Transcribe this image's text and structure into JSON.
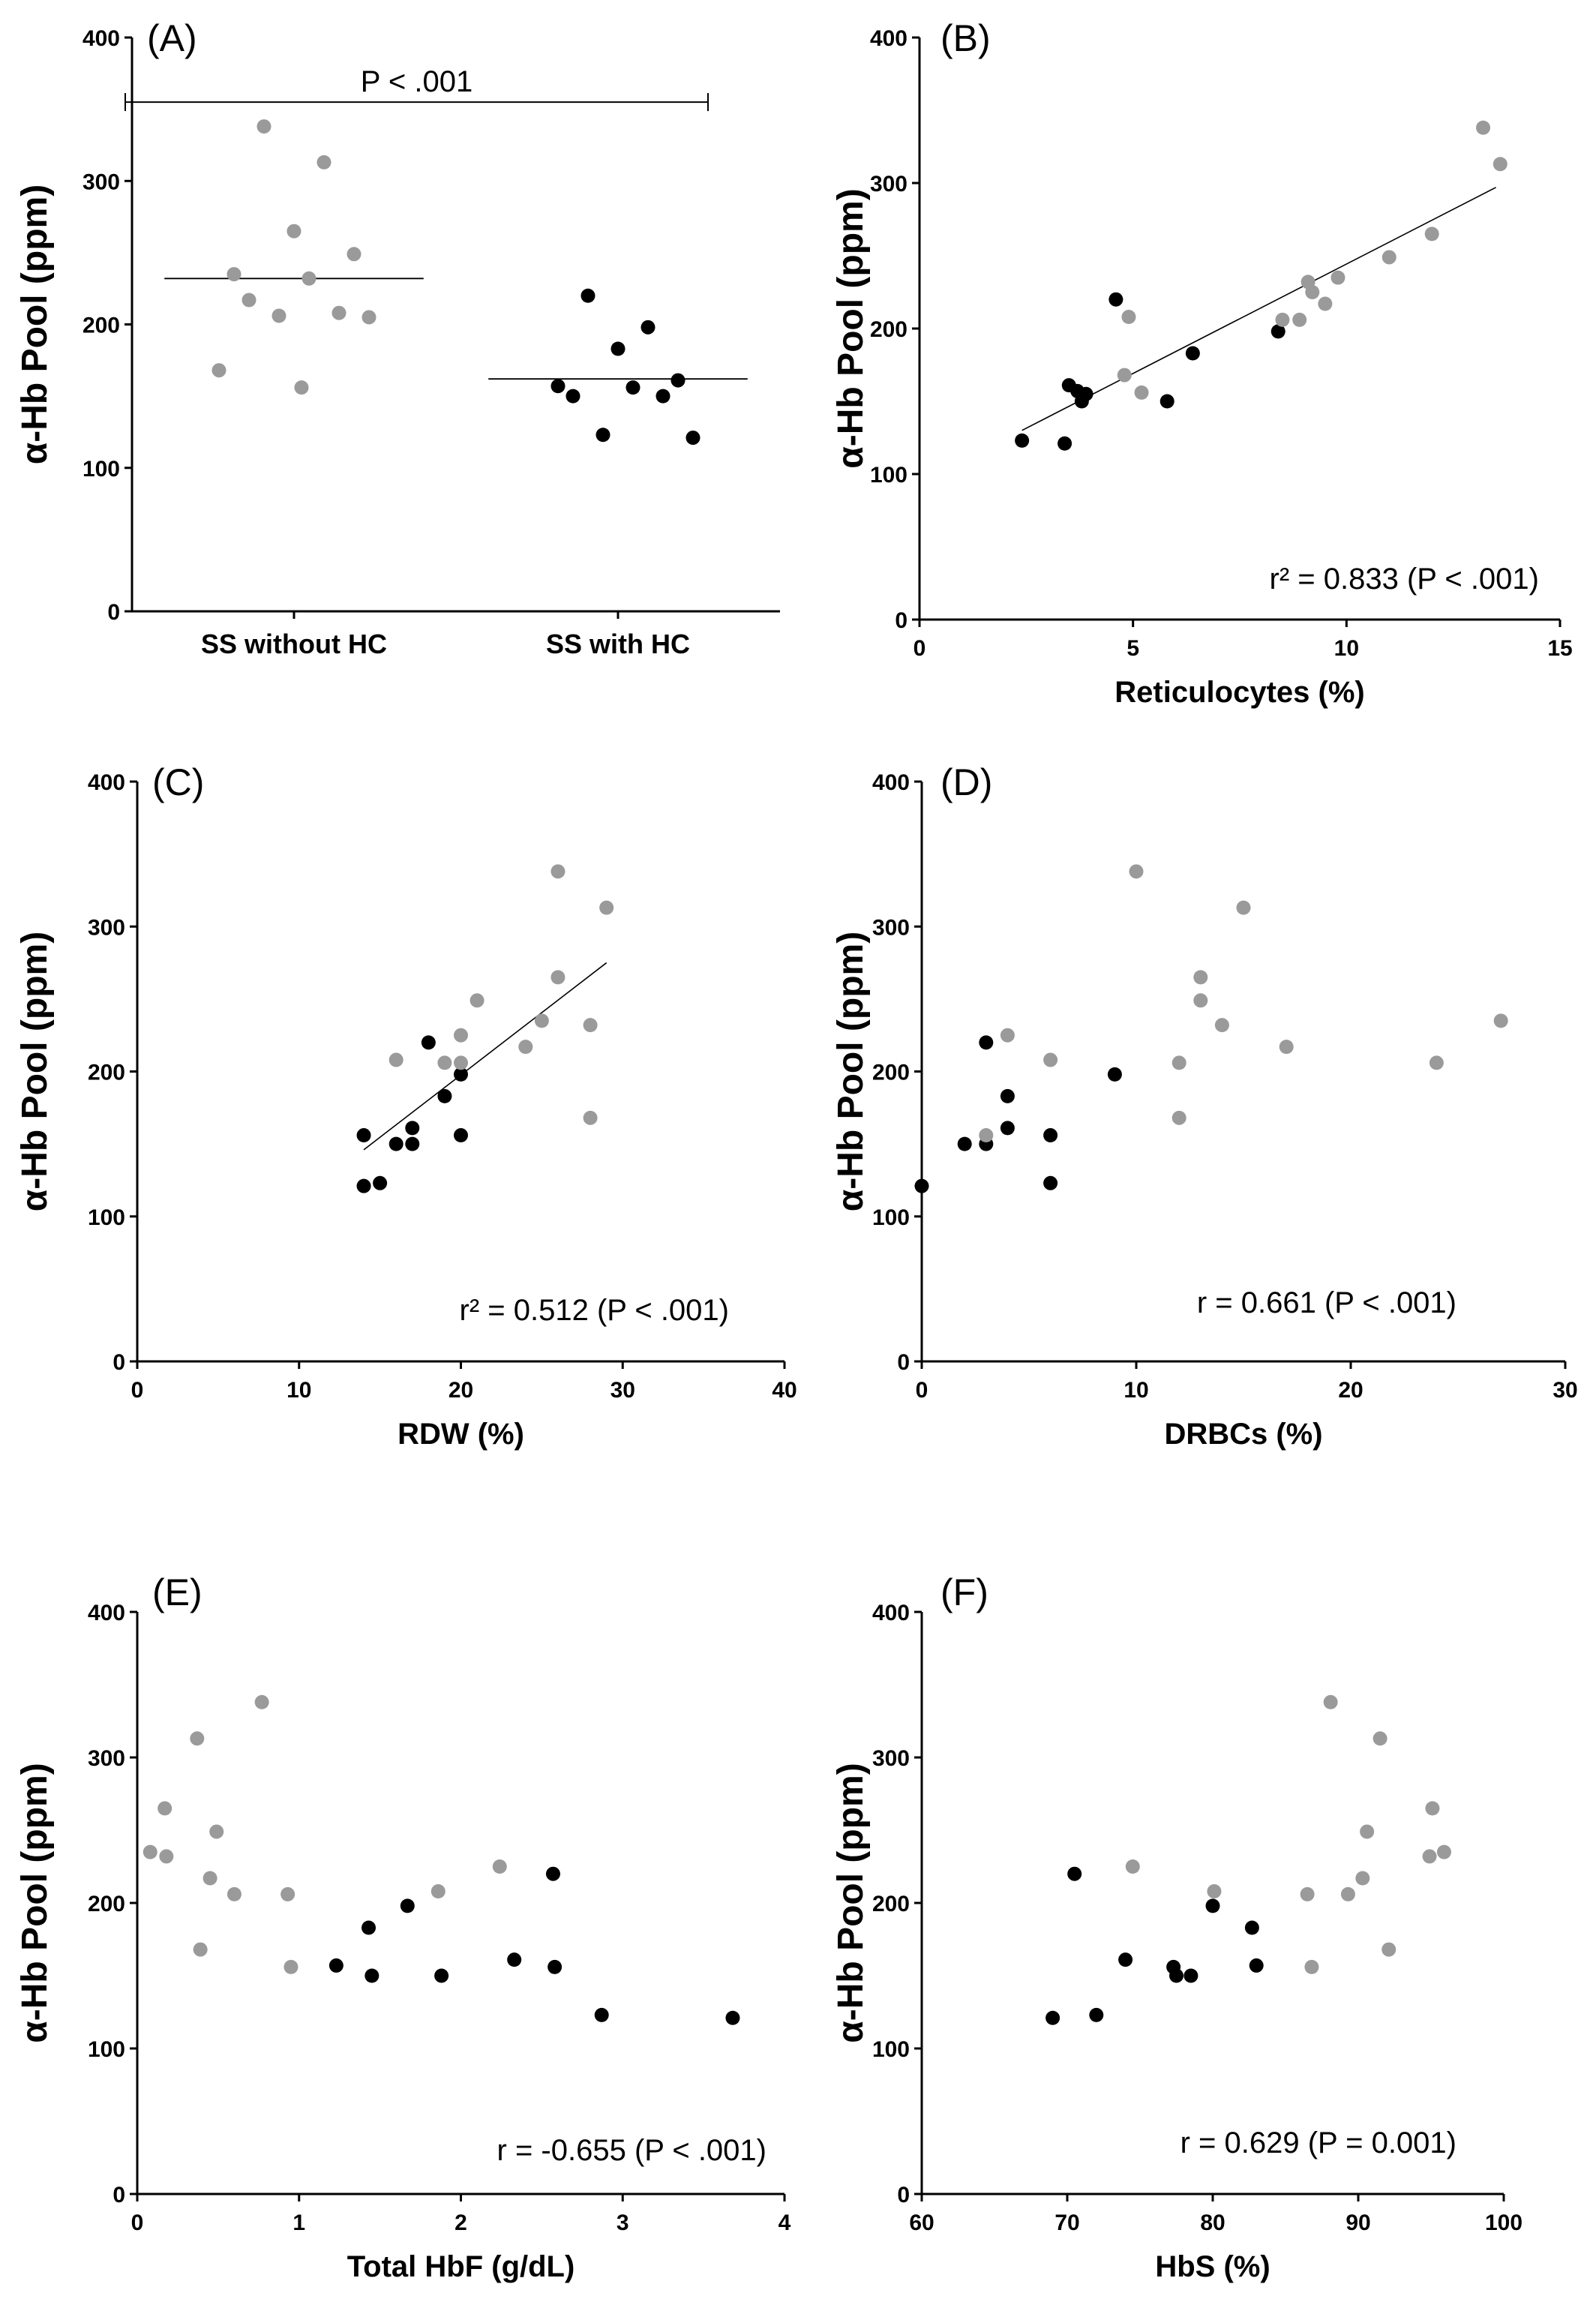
{
  "colors": {
    "with_hc": "#000000",
    "without_hc": "#9a9a9a",
    "axis": "#000000",
    "fit_line": "#000000"
  },
  "chart_data": [
    {
      "id": "A",
      "type": "scatter",
      "panel_label": "(A)",
      "ylabel": "α-Hb Pool (ppm)",
      "xlabel": "",
      "ylim": [
        0,
        400
      ],
      "yticks": [
        0,
        100,
        200,
        300,
        400
      ],
      "categories": [
        "SS without HC",
        "SS with HC"
      ],
      "annotation": "P < .001",
      "series": [
        {
          "group": "without_hc",
          "category": "SS without HC",
          "values": [
            338,
            313,
            265,
            249,
            235,
            232,
            217,
            208,
            206,
            205,
            168,
            156
          ],
          "mean": 232
        },
        {
          "group": "with_hc",
          "category": "SS with HC",
          "values": [
            220,
            198,
            183,
            161,
            157,
            156,
            150,
            150,
            123,
            121
          ],
          "mean": 162
        }
      ]
    },
    {
      "id": "B",
      "type": "scatter",
      "panel_label": "(B)",
      "ylabel": "α-Hb Pool (ppm)",
      "xlabel": "Reticulocytes (%)",
      "xlim": [
        0,
        15
      ],
      "xticks": [
        0,
        5,
        10,
        15
      ],
      "ylim": [
        0,
        400
      ],
      "yticks": [
        0,
        100,
        200,
        300,
        400
      ],
      "stat_text": "r² = 0.833 (P < .001)",
      "fit": {
        "x": [
          2.4,
          13.5
        ],
        "y": [
          130,
          297
        ]
      },
      "series": [
        {
          "group": "with_hc",
          "points": [
            [
              2.4,
              123
            ],
            [
              3.4,
              121
            ],
            [
              3.5,
              161
            ],
            [
              3.7,
              157
            ],
            [
              3.8,
              150
            ],
            [
              3.9,
              155
            ],
            [
              4.6,
              220
            ],
            [
              5.8,
              150
            ],
            [
              6.4,
              183
            ],
            [
              8.4,
              198
            ]
          ]
        },
        {
          "group": "without_hc",
          "points": [
            [
              4.8,
              168
            ],
            [
              4.9,
              208
            ],
            [
              5.2,
              156
            ],
            [
              8.5,
              206
            ],
            [
              8.9,
              206
            ],
            [
              9.1,
              232
            ],
            [
              9.2,
              225
            ],
            [
              9.5,
              217
            ],
            [
              9.8,
              235
            ],
            [
              11.0,
              249
            ],
            [
              12.0,
              265
            ],
            [
              13.2,
              338
            ],
            [
              13.6,
              313
            ]
          ]
        }
      ]
    },
    {
      "id": "C",
      "type": "scatter",
      "panel_label": "(C)",
      "ylabel": "α-Hb Pool (ppm)",
      "xlabel": "RDW (%)",
      "xlim": [
        0,
        40
      ],
      "xticks": [
        0,
        10,
        20,
        30,
        40
      ],
      "ylim": [
        0,
        400
      ],
      "yticks": [
        0,
        100,
        200,
        300,
        400
      ],
      "stat_text": "r² = 0.512 (P < .001)",
      "fit": {
        "x": [
          14,
          29
        ],
        "y": [
          146,
          275
        ]
      },
      "series": [
        {
          "group": "with_hc",
          "points": [
            [
              14,
              156
            ],
            [
              14,
              121
            ],
            [
              15,
              123
            ],
            [
              16,
              150
            ],
            [
              17,
              161
            ],
            [
              17,
              150
            ],
            [
              18,
              220
            ],
            [
              19,
              183
            ],
            [
              20,
              198
            ],
            [
              20,
              156
            ]
          ]
        },
        {
          "group": "without_hc",
          "points": [
            [
              16,
              208
            ],
            [
              19,
              206
            ],
            [
              20,
              225
            ],
            [
              20,
              206
            ],
            [
              21,
              249
            ],
            [
              24,
              217
            ],
            [
              25,
              235
            ],
            [
              26,
              338
            ],
            [
              26,
              265
            ],
            [
              28,
              232
            ],
            [
              28,
              168
            ],
            [
              29,
              313
            ]
          ]
        }
      ]
    },
    {
      "id": "D",
      "type": "scatter",
      "panel_label": "(D)",
      "ylabel": "α-Hb Pool (ppm)",
      "xlabel": "DRBCs (%)",
      "xlim": [
        0,
        30
      ],
      "xticks": [
        0,
        10,
        20,
        30
      ],
      "ylim": [
        0,
        400
      ],
      "yticks": [
        0,
        100,
        200,
        300,
        400
      ],
      "stat_text": "r = 0.661 (P < .001)",
      "series": [
        {
          "group": "with_hc",
          "points": [
            [
              0,
              121
            ],
            [
              2,
              150
            ],
            [
              3,
              150
            ],
            [
              3,
              220
            ],
            [
              4,
              183
            ],
            [
              4,
              161
            ],
            [
              6,
              156
            ],
            [
              6,
              123
            ],
            [
              9,
              198
            ]
          ]
        },
        {
          "group": "without_hc",
          "points": [
            [
              3,
              156
            ],
            [
              4,
              225
            ],
            [
              6,
              208
            ],
            [
              10,
              338
            ],
            [
              12,
              206
            ],
            [
              12,
              168
            ],
            [
              13,
              265
            ],
            [
              13,
              249
            ],
            [
              14,
              232
            ],
            [
              15,
              313
            ],
            [
              17,
              217
            ],
            [
              24,
              206
            ],
            [
              27,
              235
            ]
          ]
        }
      ]
    },
    {
      "id": "E",
      "type": "scatter",
      "panel_label": "(E)",
      "ylabel": "α-Hb Pool (ppm)",
      "xlabel": "Total HbF (g/dL)",
      "xlim": [
        0,
        4
      ],
      "xticks": [
        0,
        1,
        2,
        3,
        4
      ],
      "ylim": [
        0,
        400
      ],
      "yticks": [
        0,
        100,
        200,
        300,
        400
      ],
      "stat_text": "r = -0.655 (P < .001)",
      "series": [
        {
          "group": "with_hc",
          "points": [
            [
              1.23,
              157
            ],
            [
              1.43,
              183
            ],
            [
              1.45,
              150
            ],
            [
              1.67,
              198
            ],
            [
              1.88,
              150
            ],
            [
              2.33,
              161
            ],
            [
              2.57,
              220
            ],
            [
              2.58,
              156
            ],
            [
              2.87,
              123
            ],
            [
              3.68,
              121
            ]
          ]
        },
        {
          "group": "without_hc",
          "points": [
            [
              0.08,
              235
            ],
            [
              0.17,
              265
            ],
            [
              0.18,
              232
            ],
            [
              0.37,
              313
            ],
            [
              0.39,
              168
            ],
            [
              0.45,
              217
            ],
            [
              0.49,
              249
            ],
            [
              0.6,
              206
            ],
            [
              0.77,
              338
            ],
            [
              0.93,
              206
            ],
            [
              0.95,
              156
            ],
            [
              1.86,
              208
            ],
            [
              2.24,
              225
            ]
          ]
        }
      ]
    },
    {
      "id": "F",
      "type": "scatter",
      "panel_label": "(F)",
      "ylabel": "α-Hb Pool (ppm)",
      "xlabel": "HbS (%)",
      "xlim": [
        60,
        100
      ],
      "xticks": [
        60,
        70,
        80,
        90,
        100
      ],
      "ylim": [
        0,
        400
      ],
      "yticks": [
        0,
        100,
        200,
        300,
        400
      ],
      "stat_text": "r = 0.629 (P = 0.001)",
      "series": [
        {
          "group": "with_hc",
          "points": [
            [
              69,
              121
            ],
            [
              70.5,
              220
            ],
            [
              72,
              123
            ],
            [
              74,
              161
            ],
            [
              77.3,
              156
            ],
            [
              77.5,
              150
            ],
            [
              78.5,
              150
            ],
            [
              80,
              198
            ],
            [
              82.7,
              183
            ],
            [
              83,
              157
            ]
          ]
        },
        {
          "group": "without_hc",
          "points": [
            [
              74.5,
              225
            ],
            [
              80.1,
              208
            ],
            [
              86.5,
              206
            ],
            [
              86.8,
              156
            ],
            [
              88.1,
              338
            ],
            [
              89.3,
              206
            ],
            [
              90.3,
              217
            ],
            [
              90.6,
              249
            ],
            [
              91.5,
              313
            ],
            [
              92.1,
              168
            ],
            [
              94.9,
              232
            ],
            [
              95.1,
              265
            ],
            [
              95.9,
              235
            ]
          ]
        }
      ]
    }
  ]
}
